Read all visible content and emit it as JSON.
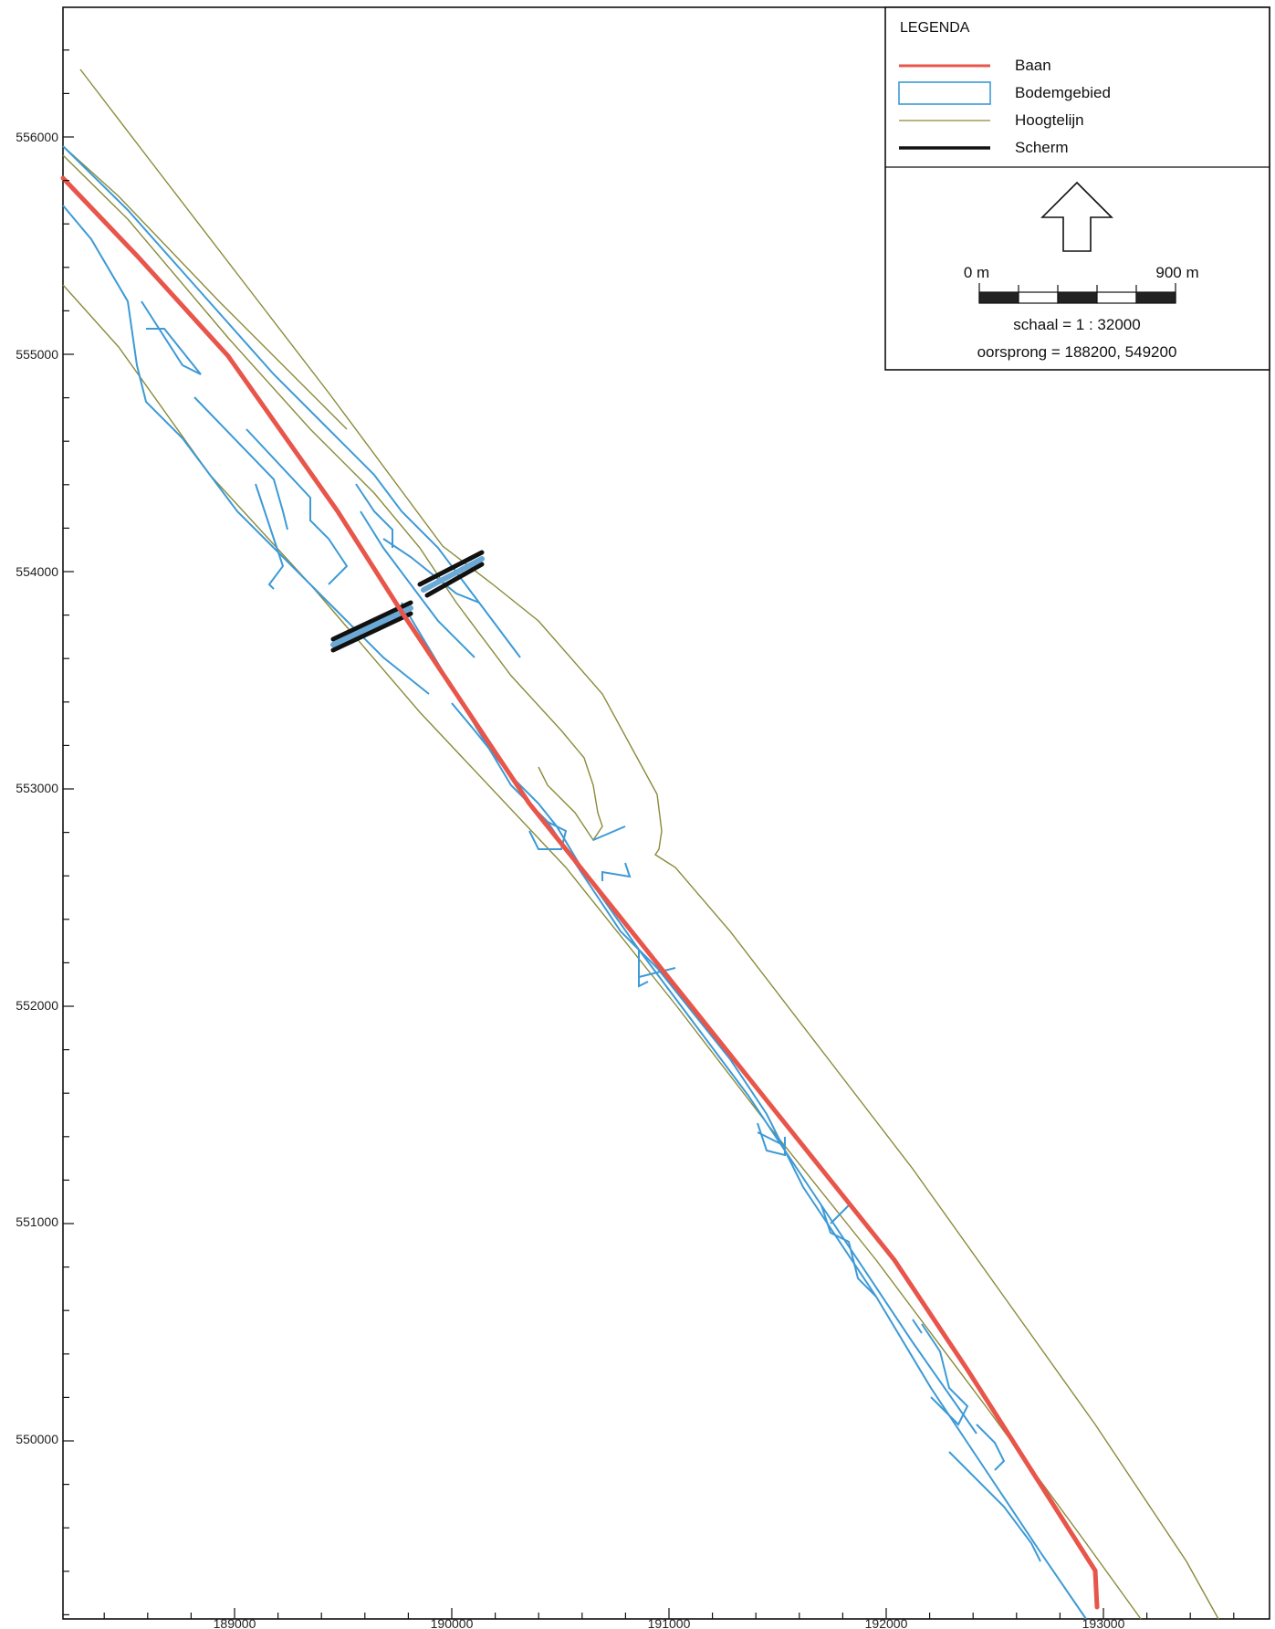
{
  "map": {
    "x_ticks": [
      "189000",
      "190000",
      "191000",
      "192000",
      "193000"
    ],
    "y_ticks": [
      "556000",
      "555000",
      "554000",
      "553000",
      "552000",
      "551000",
      "550000"
    ]
  },
  "legend": {
    "title": "LEGENDA",
    "items": [
      {
        "label": "Baan",
        "color": "#e8554a",
        "symbol": "line"
      },
      {
        "label": "Bodemgebied",
        "color": "#3d9ad6",
        "symbol": "rect"
      },
      {
        "label": "Hoogtelijn",
        "color": "#8a8a3a",
        "symbol": "thin-line"
      },
      {
        "label": "Scherm",
        "color": "#111111",
        "symbol": "thick-line"
      }
    ],
    "north_arrow": "north-arrow-icon",
    "scale_start": "0 m",
    "scale_end": "900 m",
    "scale": "schaal = 1 : 32000",
    "origin": "oorsprong = 188200, 549200"
  },
  "colors": {
    "baan": "#e8554a",
    "bodem": "#3d9ad6",
    "hoogte": "#8a8a3a",
    "scherm": "#111111"
  }
}
